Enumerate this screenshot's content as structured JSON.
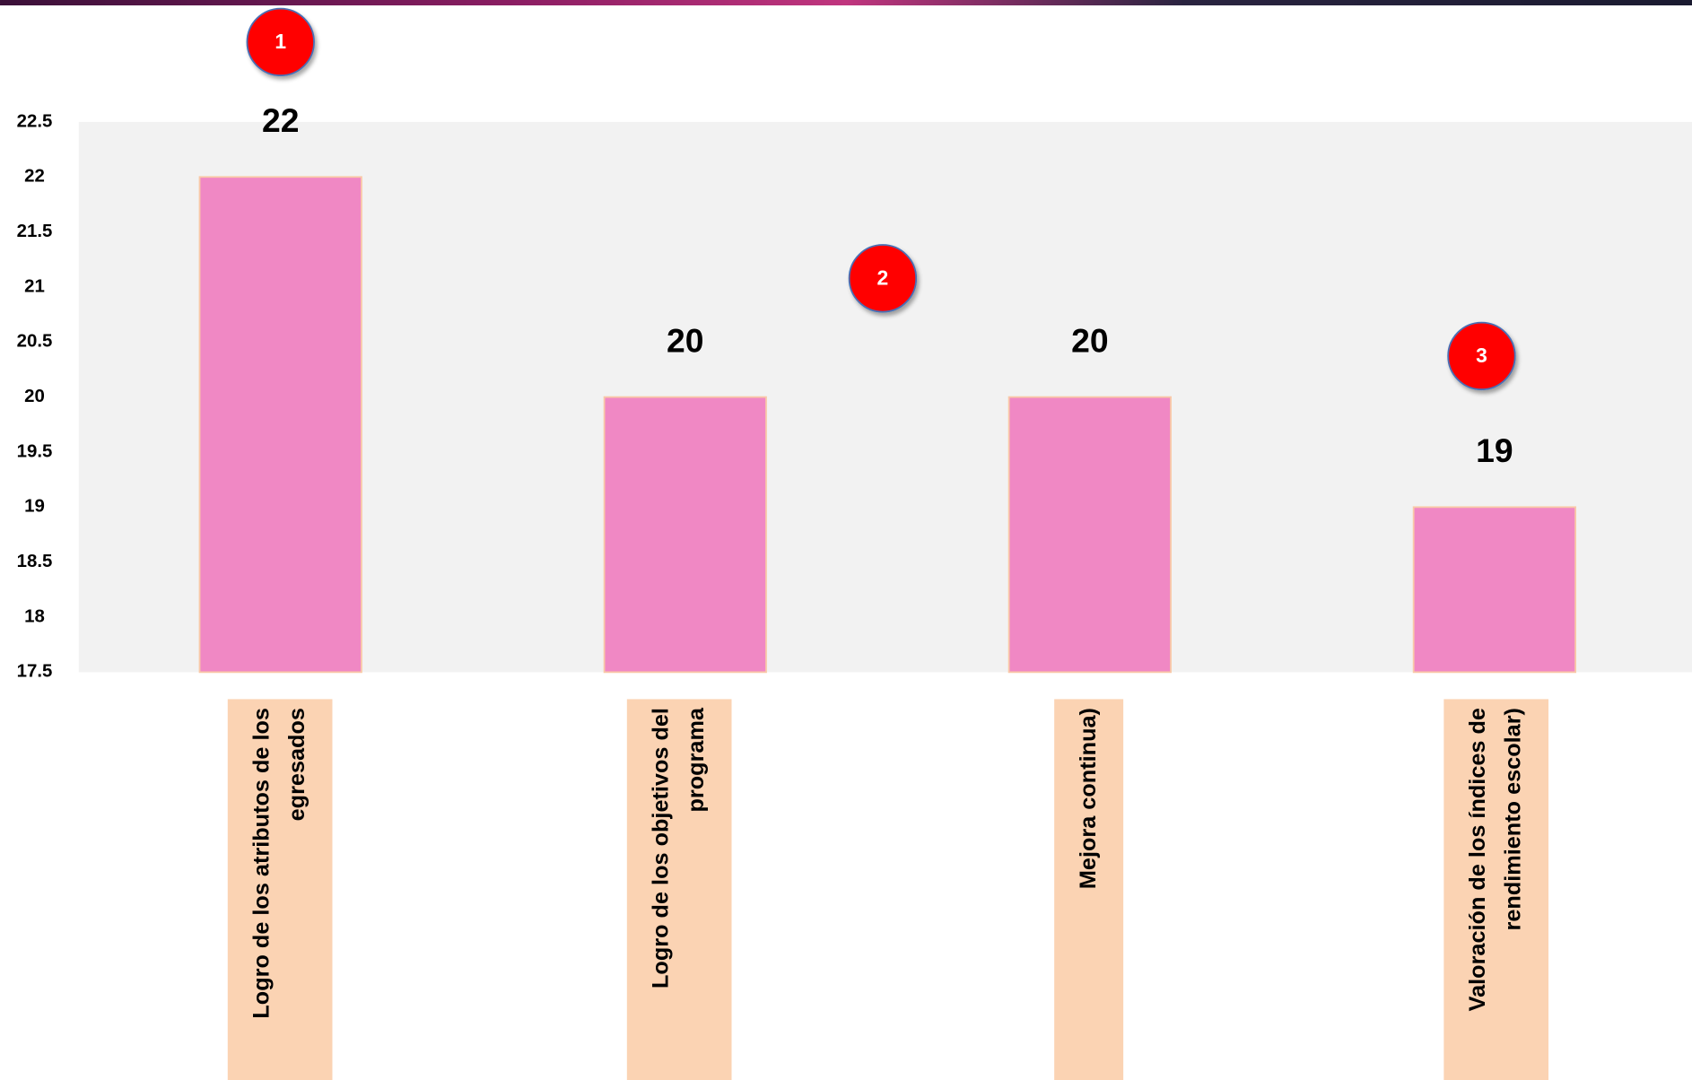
{
  "chart_data": {
    "type": "bar",
    "categories": [
      "Logro de los atributos de los egresados",
      "Logro de los objetivos del programa",
      "Mejora continua)",
      "Valoración de los índices de rendimiento escolar)"
    ],
    "values": [
      22,
      20,
      20,
      19
    ],
    "color": "#f088c4",
    "ylim": [
      17.5,
      22.5
    ],
    "yticks": [
      17.5,
      18,
      18.5,
      19,
      19.5,
      20,
      20.5,
      21,
      21.5,
      22,
      22.5
    ],
    "grid": false,
    "markers": [
      "1",
      "2",
      "3"
    ]
  }
}
